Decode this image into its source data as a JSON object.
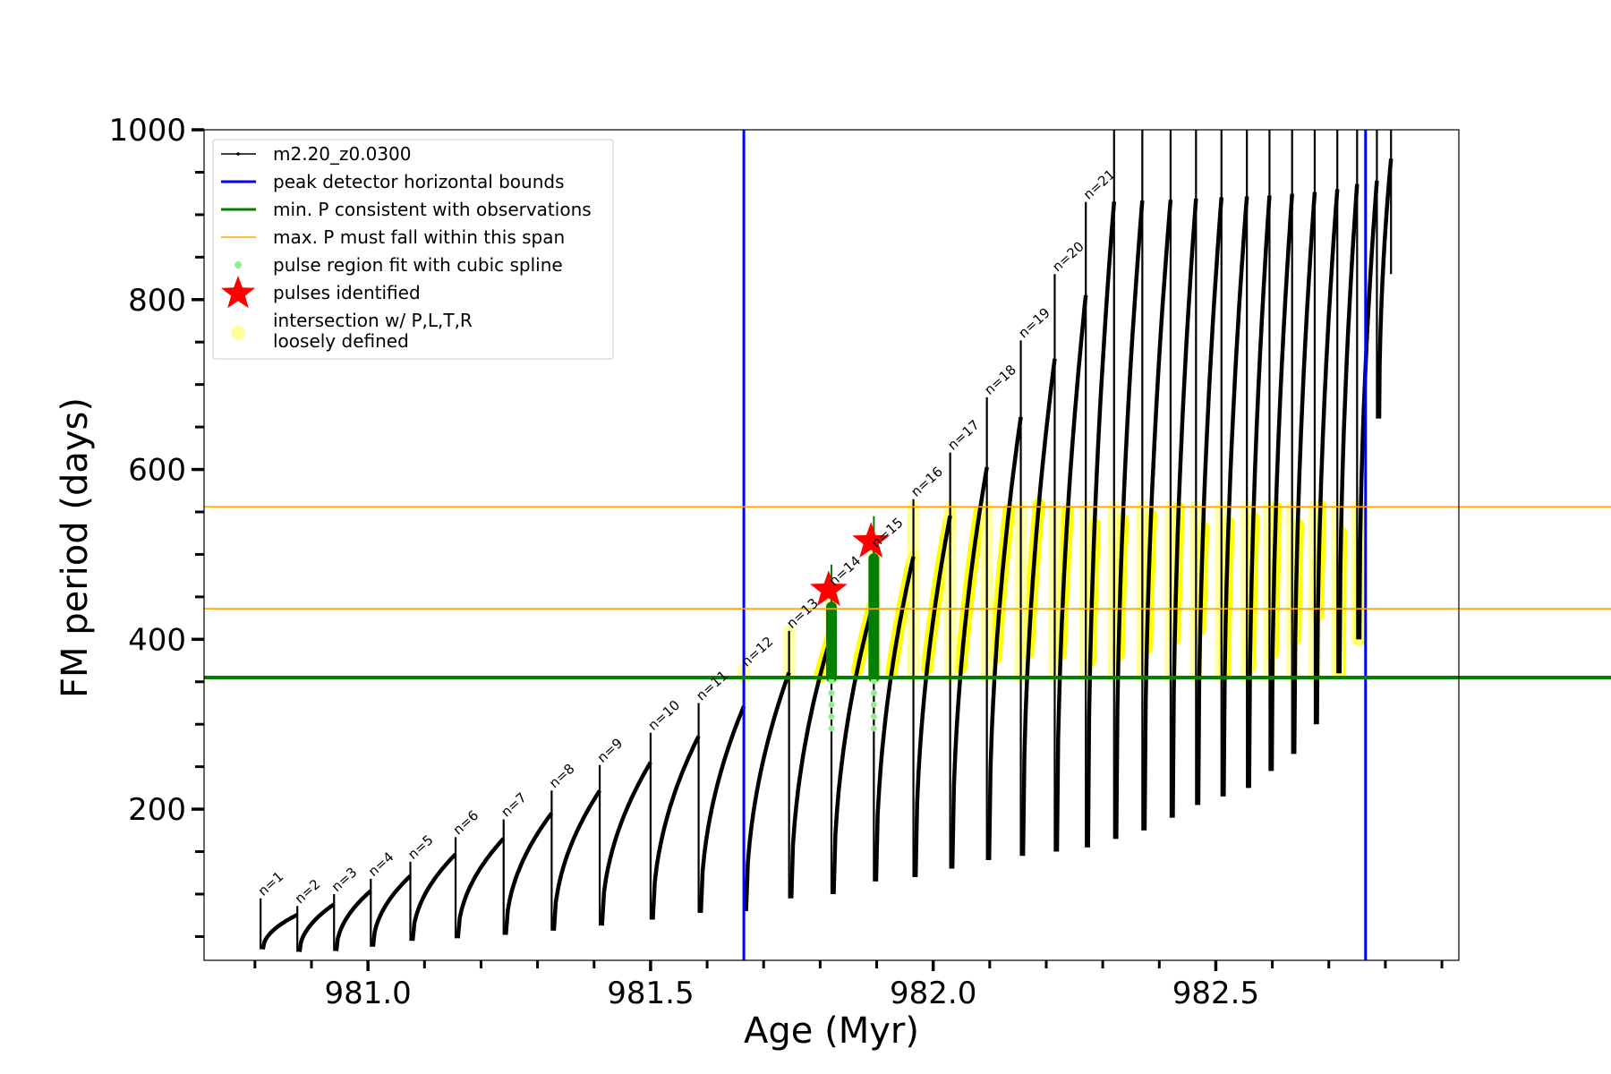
{
  "chart_data": {
    "type": "line",
    "xlabel": "Age (Myr)",
    "ylabel": "FM period (days)",
    "xlim": [
      980.71,
      982.93
    ],
    "ylim": [
      22,
      1000
    ],
    "x_ticks": [
      981.0,
      981.5,
      982.0,
      982.5
    ],
    "x_tick_labels": [
      "981.0",
      "981.5",
      "982.0",
      "982.5"
    ],
    "y_ticks": [
      200,
      400,
      600,
      800,
      1000
    ],
    "y_tick_labels": [
      "200",
      "400",
      "600",
      "800",
      "1000"
    ],
    "legend": {
      "placement": "upper-left",
      "entries": [
        {
          "key": "track",
          "label": "m2.20_z0.0300",
          "color": "#000000"
        },
        {
          "key": "blue",
          "label": "peak detector horizontal bounds",
          "color": "#0000ff"
        },
        {
          "key": "green",
          "label": "min. P consistent with observations",
          "color": "#008000"
        },
        {
          "key": "orange",
          "label": "max. P must fall within this span",
          "color": "#ffa500"
        },
        {
          "key": "spline",
          "label": "pulse region fit with cubic spline",
          "color": "#90ee90"
        },
        {
          "key": "star",
          "label": "pulses identified",
          "color": "#ff0000"
        },
        {
          "key": "intersect",
          "label": "intersection w/ P,L,T,R\nloosely defined",
          "color": "#ffff99"
        }
      ]
    },
    "reference_lines": {
      "vertical_blue_x": [
        981.665,
        982.765
      ],
      "horizontal_green_y": 355,
      "horizontal_orange_y": [
        436,
        556
      ]
    },
    "pulses": [
      {
        "n": "n=1",
        "x": 980.81,
        "min": 35,
        "peak": 95
      },
      {
        "n": "n=2",
        "x": 980.875,
        "min": 32,
        "peak": 86
      },
      {
        "n": "n=3",
        "x": 980.94,
        "min": 33,
        "peak": 100
      },
      {
        "n": "n=4",
        "x": 981.005,
        "min": 38,
        "peak": 118
      },
      {
        "n": "n=5",
        "x": 981.075,
        "min": 45,
        "peak": 138
      },
      {
        "n": "n=6",
        "x": 981.155,
        "min": 48,
        "peak": 167
      },
      {
        "n": "n=7",
        "x": 981.24,
        "min": 52,
        "peak": 188
      },
      {
        "n": "n=8",
        "x": 981.325,
        "min": 57,
        "peak": 222
      },
      {
        "n": "n=9",
        "x": 981.41,
        "min": 63,
        "peak": 252
      },
      {
        "n": "n=10",
        "x": 981.5,
        "min": 70,
        "peak": 290
      },
      {
        "n": "n=11",
        "x": 981.585,
        "min": 78,
        "peak": 325
      },
      {
        "n": "n=12",
        "x": 981.665,
        "min": 80,
        "peak": 365
      },
      {
        "n": "n=13",
        "x": 981.745,
        "min": 95,
        "peak": 410
      },
      {
        "n": "n=14",
        "x": 981.82,
        "min": 100,
        "peak": 460
      },
      {
        "n": "n=15",
        "x": 981.895,
        "min": 115,
        "peak": 505
      },
      {
        "n": "n=16",
        "x": 981.965,
        "min": 120,
        "peak": 565
      },
      {
        "n": "n=17",
        "x": 982.03,
        "min": 130,
        "peak": 620
      },
      {
        "n": "n=18",
        "x": 982.095,
        "min": 140,
        "peak": 685
      },
      {
        "n": "n=19",
        "x": 982.155,
        "min": 145,
        "peak": 752
      },
      {
        "n": "n=20",
        "x": 982.215,
        "min": 150,
        "peak": 830
      },
      {
        "n": "n=21",
        "x": 982.27,
        "min": 155,
        "peak": 915
      },
      {
        "n": "",
        "x": 982.32,
        "min": 165,
        "peak": 1000
      },
      {
        "n": "",
        "x": 982.37,
        "min": 175,
        "peak": 1000
      },
      {
        "n": "",
        "x": 982.42,
        "min": 190,
        "peak": 1000
      },
      {
        "n": "",
        "x": 982.465,
        "min": 205,
        "peak": 1000
      },
      {
        "n": "",
        "x": 982.51,
        "min": 215,
        "peak": 1000
      },
      {
        "n": "",
        "x": 982.555,
        "min": 225,
        "peak": 1000
      },
      {
        "n": "",
        "x": 982.595,
        "min": 245,
        "peak": 1000
      },
      {
        "n": "",
        "x": 982.635,
        "min": 265,
        "peak": 1000
      },
      {
        "n": "",
        "x": 982.675,
        "min": 300,
        "peak": 1000
      },
      {
        "n": "",
        "x": 982.715,
        "min": 360,
        "peak": 1000
      },
      {
        "n": "",
        "x": 982.75,
        "min": 400,
        "peak": 1000
      },
      {
        "n": "",
        "x": 982.785,
        "min": 660,
        "peak": 1000
      },
      {
        "n": "",
        "x": 982.81,
        "min": 830,
        "peak": 1000
      }
    ],
    "stars": [
      {
        "x": 981.815,
        "y": 458
      },
      {
        "x": 981.89,
        "y": 515
      }
    ]
  }
}
